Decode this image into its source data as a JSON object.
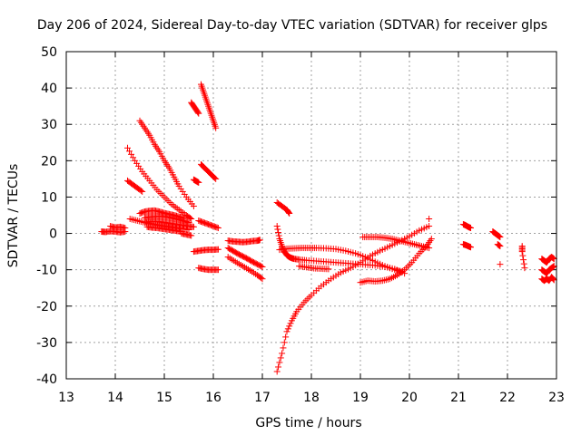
{
  "chart_data": {
    "type": "scatter",
    "title": "Day 206 of 2024, Sidereal Day-to-day VTEC variation (SDTVAR) for receiver glps",
    "xlabel": "GPS time / hours",
    "ylabel": "SDTVAR / TECUs",
    "xlim": [
      13,
      23
    ],
    "ylim": [
      -40,
      50
    ],
    "xticks": [
      "13",
      "14",
      "15",
      "16",
      "17",
      "18",
      "19",
      "20",
      "21",
      "22",
      "23"
    ],
    "yticks": [
      "-40",
      "-30",
      "-20",
      "-10",
      "0",
      "10",
      "20",
      "30",
      "40",
      "50"
    ],
    "grid": true,
    "marker": "+",
    "color": "#ff0000",
    "series": [
      {
        "name": "segment-01",
        "x": [
          13.72,
          13.8,
          13.9,
          14.0,
          14.1,
          14.2
        ],
        "y": [
          0.5,
          0.4,
          0.6,
          0.5,
          0.3,
          0.5
        ]
      },
      {
        "name": "segment-02",
        "x": [
          13.9,
          14.0,
          14.1,
          14.2
        ],
        "y": [
          2.0,
          1.6,
          1.8,
          1.5
        ]
      },
      {
        "name": "segment-03",
        "x": [
          14.25,
          14.4,
          14.55,
          14.7,
          14.85,
          15.0,
          15.15,
          15.3,
          15.45,
          15.55
        ],
        "y": [
          23.5,
          20.0,
          17.0,
          14.5,
          12.0,
          10.0,
          8.0,
          6.5,
          5.0,
          4.0
        ]
      },
      {
        "name": "segment-04",
        "x": [
          14.25,
          14.35,
          14.45,
          14.55
        ],
        "y": [
          14.5,
          13.5,
          12.5,
          11.5
        ]
      },
      {
        "name": "segment-05",
        "x": [
          14.3,
          14.45,
          14.6,
          14.75,
          14.9,
          15.05,
          15.2,
          15.35,
          15.5
        ],
        "y": [
          4.0,
          3.5,
          3.0,
          2.6,
          2.2,
          1.9,
          1.6,
          1.3,
          1.0
        ]
      },
      {
        "name": "segment-06",
        "x": [
          14.5,
          14.6,
          14.7,
          14.8,
          14.9,
          15.0,
          15.1,
          15.2,
          15.3,
          15.45,
          15.6
        ],
        "y": [
          31.0,
          29.0,
          27.0,
          24.5,
          22.5,
          20.0,
          18.0,
          15.5,
          13.0,
          10.0,
          7.5
        ]
      },
      {
        "name": "segment-07",
        "x": [
          14.5,
          14.6,
          14.7,
          14.8,
          14.9,
          15.0,
          15.1,
          15.2,
          15.3,
          15.4
        ],
        "y": [
          5.5,
          6.0,
          6.2,
          6.3,
          6.0,
          5.6,
          5.3,
          5.0,
          4.6,
          4.2
        ]
      },
      {
        "name": "segment-08",
        "x": [
          14.6,
          14.7,
          14.8,
          14.9,
          15.0,
          15.1,
          15.2,
          15.3,
          15.4,
          15.5
        ],
        "y": [
          4.3,
          4.5,
          4.6,
          4.7,
          4.6,
          4.4,
          4.1,
          3.8,
          3.4,
          3.0
        ]
      },
      {
        "name": "segment-09",
        "x": [
          14.6,
          14.7,
          14.8,
          14.9,
          15.0,
          15.1,
          15.2,
          15.3,
          15.4,
          15.5,
          15.6
        ],
        "y": [
          3.0,
          3.2,
          3.3,
          3.2,
          3.0,
          2.8,
          2.6,
          2.4,
          2.2,
          2.0,
          1.8
        ]
      },
      {
        "name": "segment-10",
        "x": [
          14.65,
          14.75,
          14.85,
          14.95,
          15.05,
          15.15,
          15.25,
          15.35
        ],
        "y": [
          1.8,
          1.6,
          1.5,
          1.3,
          1.1,
          0.9,
          0.7,
          0.5
        ]
      },
      {
        "name": "segment-11",
        "x": [
          15.35,
          15.45,
          15.55
        ],
        "y": [
          0.0,
          -0.3,
          -0.6
        ]
      },
      {
        "name": "segment-12",
        "x": [
          15.55,
          15.6,
          15.65,
          15.7
        ],
        "y": [
          36.0,
          35.0,
          34.0,
          33.0
        ]
      },
      {
        "name": "segment-13",
        "x": [
          15.6,
          15.65,
          15.7
        ],
        "y": [
          14.8,
          14.4,
          14.0
        ]
      },
      {
        "name": "segment-14",
        "x": [
          15.6,
          15.7,
          15.8,
          15.9,
          16.0,
          16.1
        ],
        "y": [
          -5.0,
          -4.8,
          -4.6,
          -4.5,
          -4.5,
          -4.4
        ]
      },
      {
        "name": "segment-15",
        "x": [
          15.7,
          15.8,
          15.9,
          16.0,
          16.1
        ],
        "y": [
          3.5,
          3.0,
          2.5,
          2.0,
          1.5
        ]
      },
      {
        "name": "segment-16",
        "x": [
          15.7,
          15.8,
          15.9,
          16.0,
          16.1
        ],
        "y": [
          -9.5,
          -9.8,
          -10.0,
          -10.0,
          -10.0
        ]
      },
      {
        "name": "segment-17",
        "x": [
          15.75,
          15.82,
          15.9,
          15.97,
          16.05
        ],
        "y": [
          19.0,
          18.0,
          17.0,
          16.0,
          15.0
        ]
      },
      {
        "name": "segment-18",
        "x": [
          15.75,
          15.8,
          15.85,
          15.9,
          15.95,
          16.0,
          16.05
        ],
        "y": [
          41.0,
          39.0,
          37.0,
          35.0,
          33.0,
          31.0,
          29.0
        ]
      },
      {
        "name": "segment-19",
        "x": [
          16.3,
          16.4,
          16.5,
          16.6,
          16.7,
          16.8,
          16.9,
          16.95
        ],
        "y": [
          -2.0,
          -2.2,
          -2.3,
          -2.4,
          -2.3,
          -2.1,
          -2.0,
          -1.8
        ]
      },
      {
        "name": "segment-20",
        "x": [
          16.3,
          16.4,
          16.5,
          16.6,
          16.7,
          16.8,
          16.9,
          17.0
        ],
        "y": [
          -4.0,
          -4.8,
          -5.6,
          -6.3,
          -7.0,
          -7.8,
          -8.5,
          -9.2
        ]
      },
      {
        "name": "segment-21",
        "x": [
          16.3,
          16.45,
          16.6,
          16.75,
          16.9,
          17.0
        ],
        "y": [
          -6.5,
          -7.8,
          -9.0,
          -10.2,
          -11.5,
          -12.5
        ]
      },
      {
        "name": "segment-22",
        "x": [
          17.3,
          17.4,
          17.5,
          17.55
        ],
        "y": [
          8.5,
          7.5,
          6.5,
          5.5
        ]
      },
      {
        "name": "segment-23",
        "x": [
          17.3,
          17.35,
          17.4,
          17.45,
          17.5,
          17.55,
          17.6,
          17.65,
          17.75,
          17.9,
          18.1,
          18.3,
          18.5,
          18.7,
          18.9,
          19.1,
          19.3,
          19.5,
          19.7,
          19.9
        ],
        "y": [
          2.0,
          -1.5,
          -3.5,
          -5.0,
          -6.0,
          -6.5,
          -6.8,
          -7.0,
          -7.2,
          -7.4,
          -7.6,
          -7.8,
          -8.0,
          -8.2,
          -8.4,
          -8.6,
          -8.8,
          -9.2,
          -9.8,
          -11.0
        ]
      },
      {
        "name": "segment-24",
        "x": [
          17.35,
          17.5,
          17.65,
          17.8,
          17.95,
          18.1,
          18.3,
          18.5,
          18.7,
          18.9,
          19.1,
          19.3,
          19.5,
          19.7,
          19.85
        ],
        "y": [
          -4.5,
          -4.2,
          -4.1,
          -4.0,
          -4.0,
          -4.0,
          -4.1,
          -4.3,
          -4.8,
          -5.5,
          -6.5,
          -7.8,
          -9.0,
          -10.0,
          -10.5
        ]
      },
      {
        "name": "segment-25",
        "x": [
          17.75,
          17.9,
          18.05,
          18.2,
          18.35
        ],
        "y": [
          -9.0,
          -9.3,
          -9.6,
          -9.7,
          -9.8
        ]
      },
      {
        "name": "segment-26",
        "x": [
          17.3,
          17.4,
          17.5,
          17.6,
          17.7,
          17.85,
          18.0,
          18.2,
          18.4,
          18.6,
          18.8,
          19.0,
          19.2,
          19.4,
          19.6,
          19.8,
          20.0,
          20.2,
          20.4
        ],
        "y": [
          -38.0,
          -33.0,
          -27.0,
          -24.0,
          -21.5,
          -19.0,
          -17.0,
          -14.5,
          -12.5,
          -10.8,
          -9.5,
          -8.0,
          -6.2,
          -4.8,
          -3.5,
          -2.2,
          -0.8,
          0.8,
          2.0
        ]
      },
      {
        "name": "segment-27",
        "x": [
          19.05,
          19.2,
          19.35,
          19.5,
          19.65,
          19.8,
          19.95,
          20.1,
          20.25,
          20.4
        ],
        "y": [
          -1.0,
          -1.0,
          -1.0,
          -1.2,
          -1.5,
          -2.0,
          -2.5,
          -3.0,
          -3.5,
          -4.0
        ]
      },
      {
        "name": "segment-28",
        "x": [
          19.0,
          19.15,
          19.3,
          19.45,
          19.6,
          19.75,
          19.9,
          20.05,
          20.2,
          20.35,
          20.45
        ],
        "y": [
          -13.5,
          -13.0,
          -13.2,
          -13.0,
          -12.5,
          -11.5,
          -10.0,
          -8.0,
          -5.5,
          -3.5,
          -1.5
        ]
      },
      {
        "name": "segment-29",
        "x": [
          20.4
        ],
        "y": [
          4.0
        ]
      },
      {
        "name": "segment-30",
        "x": [
          21.1,
          21.15,
          21.2,
          21.25
        ],
        "y": [
          2.5,
          2.2,
          1.8,
          1.5
        ]
      },
      {
        "name": "segment-31",
        "x": [
          21.1,
          21.15,
          21.2,
          21.25
        ],
        "y": [
          -3.0,
          -3.2,
          -3.5,
          -3.8
        ]
      },
      {
        "name": "segment-32",
        "x": [
          21.7,
          21.75,
          21.8,
          21.85
        ],
        "y": [
          0.5,
          0.0,
          -0.5,
          -1.0
        ]
      },
      {
        "name": "segment-33",
        "x": [
          21.8,
          21.85
        ],
        "y": [
          -3.0,
          -3.5
        ]
      },
      {
        "name": "segment-34",
        "x": [
          21.85
        ],
        "y": [
          -8.5
        ]
      },
      {
        "name": "segment-35",
        "x": [
          22.3,
          22.3,
          22.35
        ],
        "y": [
          -3.5,
          -5.0,
          -9.5
        ]
      },
      {
        "name": "segment-36",
        "x": [
          22.7,
          22.75,
          22.8,
          22.85,
          22.9,
          22.95
        ],
        "y": [
          -7.0,
          -7.5,
          -8.0,
          -7.0,
          -6.5,
          -7.0
        ]
      },
      {
        "name": "segment-37",
        "x": [
          22.7,
          22.75,
          22.8,
          22.85,
          22.9,
          22.95
        ],
        "y": [
          -10.0,
          -10.5,
          -11.0,
          -10.0,
          -9.5,
          -9.0
        ]
      },
      {
        "name": "segment-38",
        "x": [
          22.7,
          22.75,
          22.8,
          22.85,
          22.9,
          22.95
        ],
        "y": [
          -12.5,
          -13.0,
          -12.5,
          -13.0,
          -12.0,
          -12.8
        ]
      }
    ]
  }
}
